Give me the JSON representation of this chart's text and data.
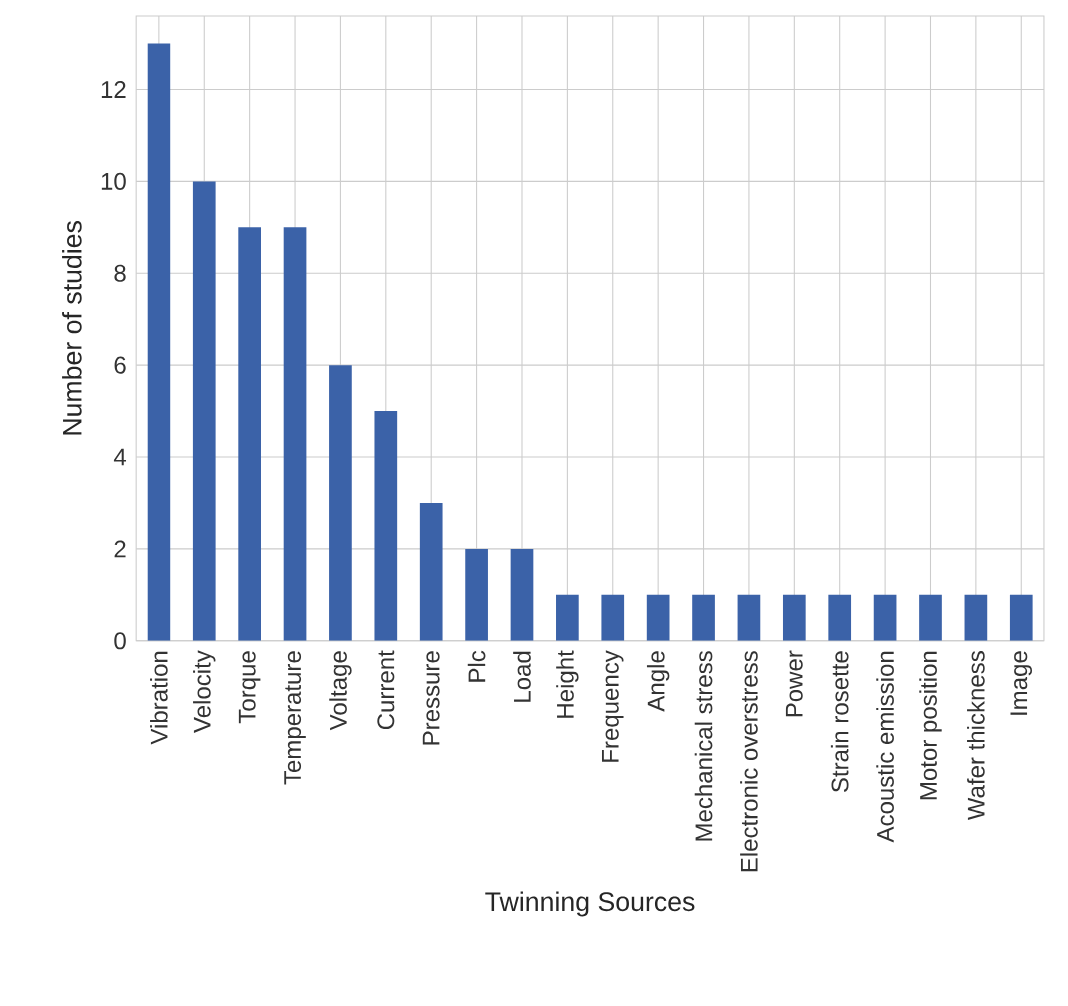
{
  "chart_data": {
    "type": "bar",
    "xlabel": "Twinning Sources",
    "ylabel": "Number of studies",
    "categories": [
      "Vibration",
      "Velocity",
      "Torque",
      "Temperature",
      "Voltage",
      "Current",
      "Pressure",
      "Plc",
      "Load",
      "Height",
      "Frequency",
      "Angle",
      "Mechanical stress",
      "Electronic overstress",
      "Power",
      "Strain rosette",
      "Acoustic emission",
      "Motor position",
      "Wafer thickness",
      "Image"
    ],
    "values": [
      13,
      10,
      9,
      9,
      6,
      5,
      3,
      2,
      2,
      1,
      1,
      1,
      1,
      1,
      1,
      1,
      1,
      1,
      1,
      1
    ],
    "color": "#3b62a8",
    "ylim": [
      0,
      13.6
    ],
    "yticks": [
      0,
      2,
      4,
      6,
      8,
      10,
      12
    ],
    "grid": true
  }
}
